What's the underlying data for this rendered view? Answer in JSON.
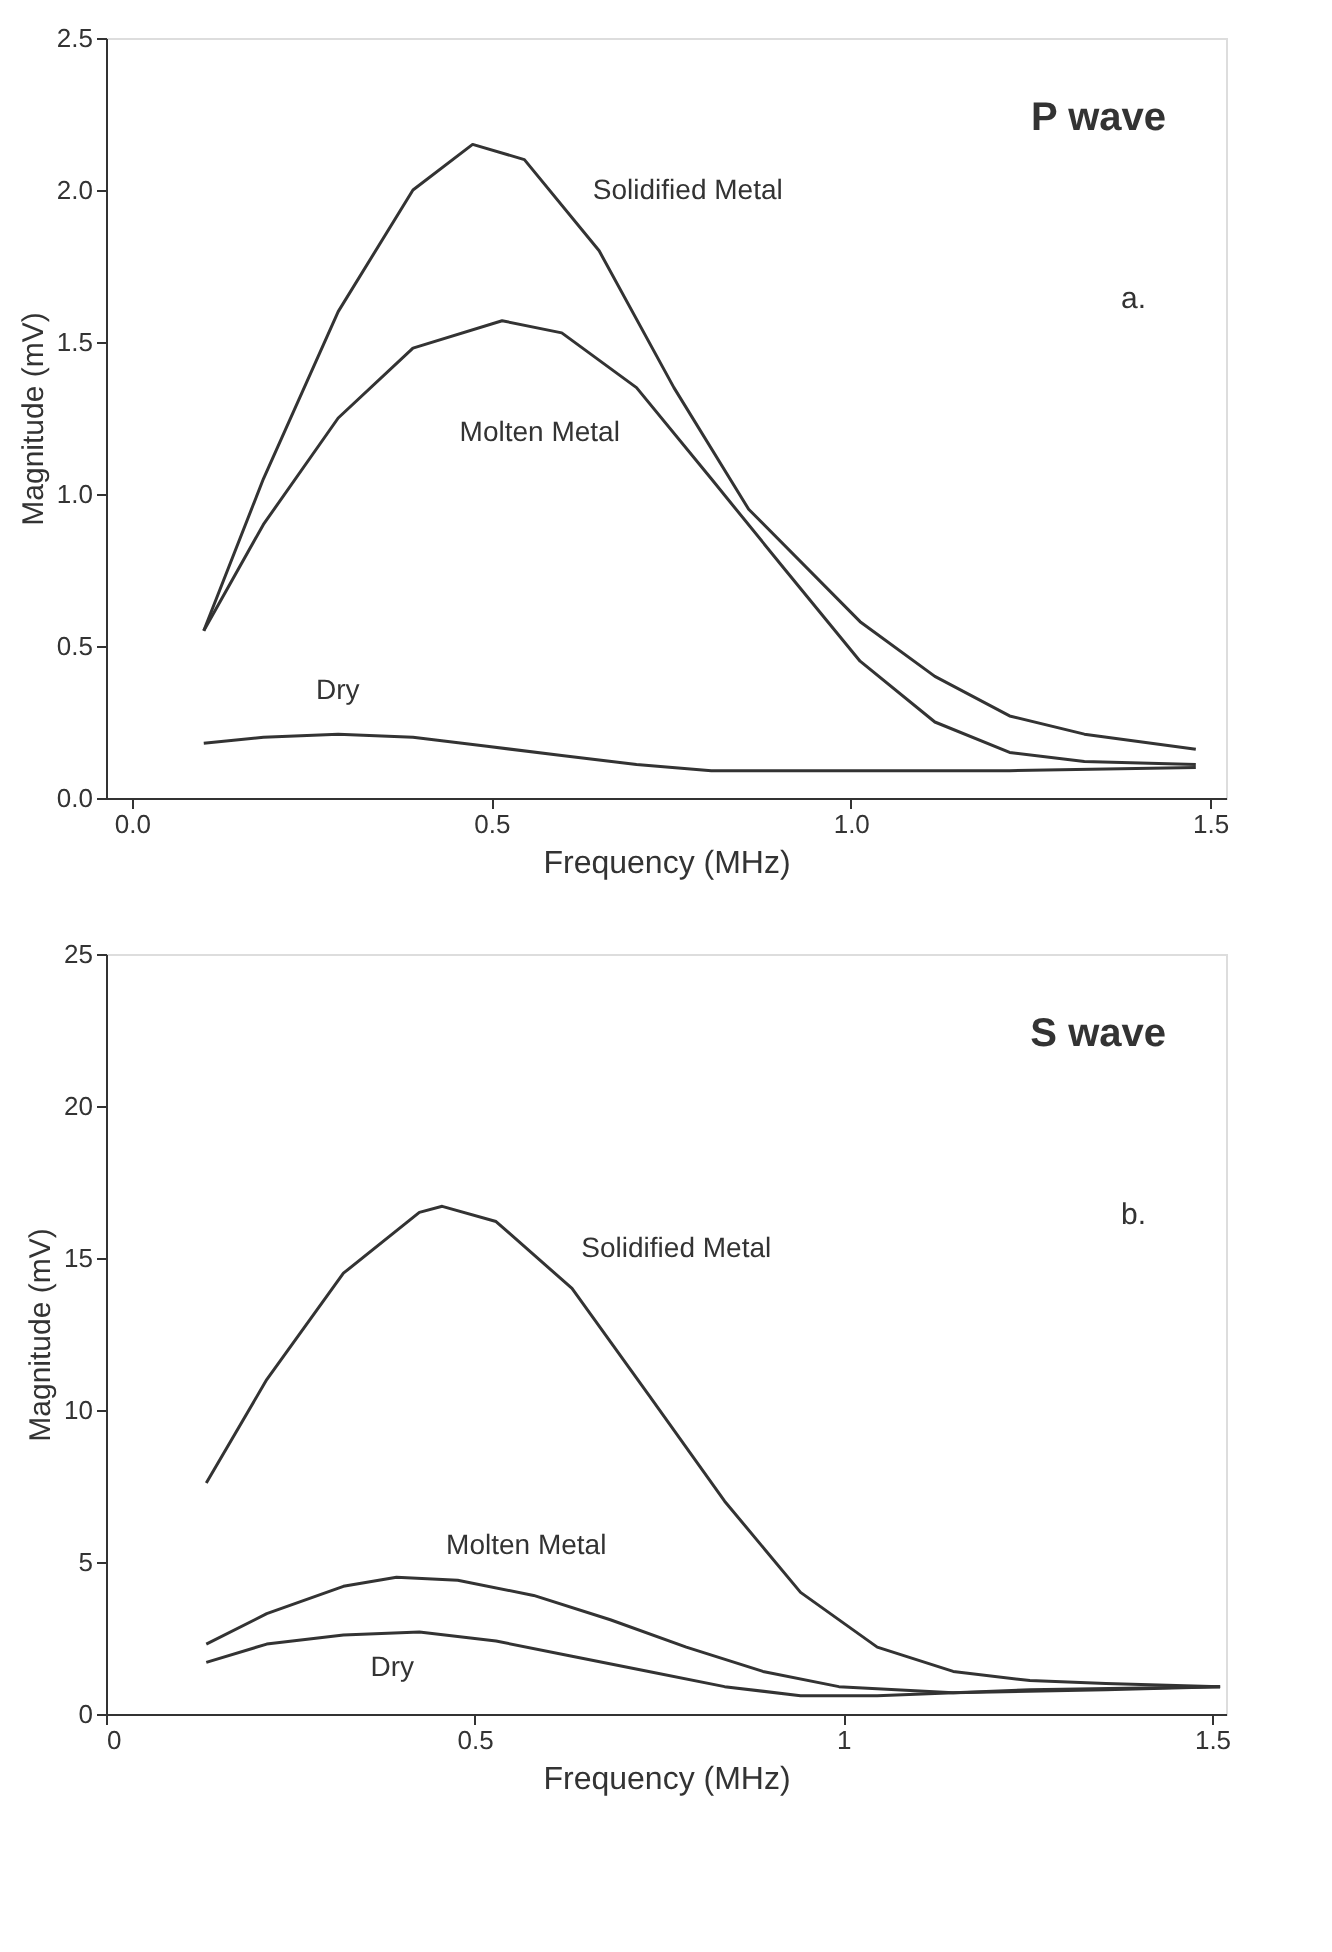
{
  "chart_data": [
    {
      "type": "line",
      "xlabel": "Frequency (MHz)",
      "ylabel": "Magnitude (mV)",
      "annotations": [
        "P wave",
        "a."
      ],
      "xlim": [
        -0.036,
        1.522
      ],
      "ylim": [
        0,
        2.5
      ],
      "xticks": [
        {
          "value": 0,
          "label": "0.0"
        },
        0.5,
        {
          "value": 1,
          "label": "1.0"
        },
        1.5
      ],
      "yticks": [
        {
          "value": 0,
          "label": "0.0"
        },
        0.5,
        {
          "value": 1,
          "label": "1.0"
        },
        1.5,
        {
          "value": 2,
          "label": "2.0"
        },
        2.5
      ],
      "grid": false,
      "legend": false,
      "marker": "none",
      "line_style": "solid",
      "series": [
        {
          "name": "Solidified Metal",
          "color": "#333333",
          "x": [
            0.1,
            0.183,
            0.287,
            0.391,
            0.474,
            0.546,
            0.65,
            0.754,
            0.858,
            1.013,
            1.117,
            1.221,
            1.325,
            1.48
          ],
          "values": [
            0.55,
            1.05,
            1.6,
            2.0,
            2.15,
            2.1,
            1.8,
            1.35,
            0.95,
            0.58,
            0.4,
            0.27,
            0.21,
            0.16
          ]
        },
        {
          "name": "Molten Metal",
          "color": "#333333",
          "x": [
            0.1,
            0.183,
            0.287,
            0.391,
            0.515,
            0.598,
            0.702,
            0.806,
            0.909,
            1.013,
            1.117,
            1.221,
            1.325,
            1.48
          ],
          "values": [
            0.55,
            0.9,
            1.25,
            1.48,
            1.57,
            1.53,
            1.35,
            1.05,
            0.75,
            0.45,
            0.25,
            0.15,
            0.12,
            0.11
          ]
        },
        {
          "name": "Dry",
          "color": "#333333",
          "x": [
            0.1,
            0.183,
            0.287,
            0.391,
            0.494,
            0.598,
            0.702,
            0.806,
            1.013,
            1.221,
            1.48
          ],
          "values": [
            0.18,
            0.2,
            0.21,
            0.2,
            0.17,
            0.14,
            0.11,
            0.09,
            0.09,
            0.09,
            0.1
          ]
        }
      ]
    },
    {
      "type": "line",
      "xlabel": "Frequency (MHz)",
      "ylabel": "Magnitude (mV)",
      "annotations": [
        "S wave",
        "b."
      ],
      "xlim": [
        0,
        1.519
      ],
      "ylim": [
        0,
        25
      ],
      "xticks": [
        0,
        0.5,
        1,
        1.5
      ],
      "yticks": [
        0,
        5,
        10,
        15,
        20,
        25
      ],
      "grid": false,
      "legend": false,
      "marker": "none",
      "line_style": "solid",
      "series": [
        {
          "name": "Solidified Metal",
          "color": "#333333",
          "x": [
            0.136,
            0.218,
            0.322,
            0.425,
            0.456,
            0.529,
            0.632,
            0.736,
            0.839,
            0.942,
            1.046,
            1.149,
            1.253,
            1.356,
            1.511
          ],
          "values": [
            7.6,
            11,
            14.5,
            16.5,
            16.7,
            16.2,
            14,
            10.5,
            7,
            4,
            2.2,
            1.4,
            1.1,
            1.0,
            0.9
          ]
        },
        {
          "name": "Molten Metal",
          "color": "#333333",
          "x": [
            0.136,
            0.218,
            0.322,
            0.394,
            0.477,
            0.58,
            0.684,
            0.787,
            0.891,
            0.994,
            1.149,
            1.356,
            1.511
          ],
          "values": [
            2.3,
            3.3,
            4.2,
            4.5,
            4.4,
            3.9,
            3.1,
            2.2,
            1.4,
            0.9,
            0.7,
            0.8,
            0.9
          ]
        },
        {
          "name": "Dry",
          "color": "#333333",
          "x": [
            0.136,
            0.218,
            0.322,
            0.425,
            0.529,
            0.632,
            0.736,
            0.839,
            0.942,
            1.046,
            1.253,
            1.511
          ],
          "values": [
            1.7,
            2.3,
            2.6,
            2.7,
            2.4,
            1.9,
            1.4,
            0.9,
            0.6,
            0.6,
            0.8,
            0.9
          ]
        }
      ]
    }
  ]
}
